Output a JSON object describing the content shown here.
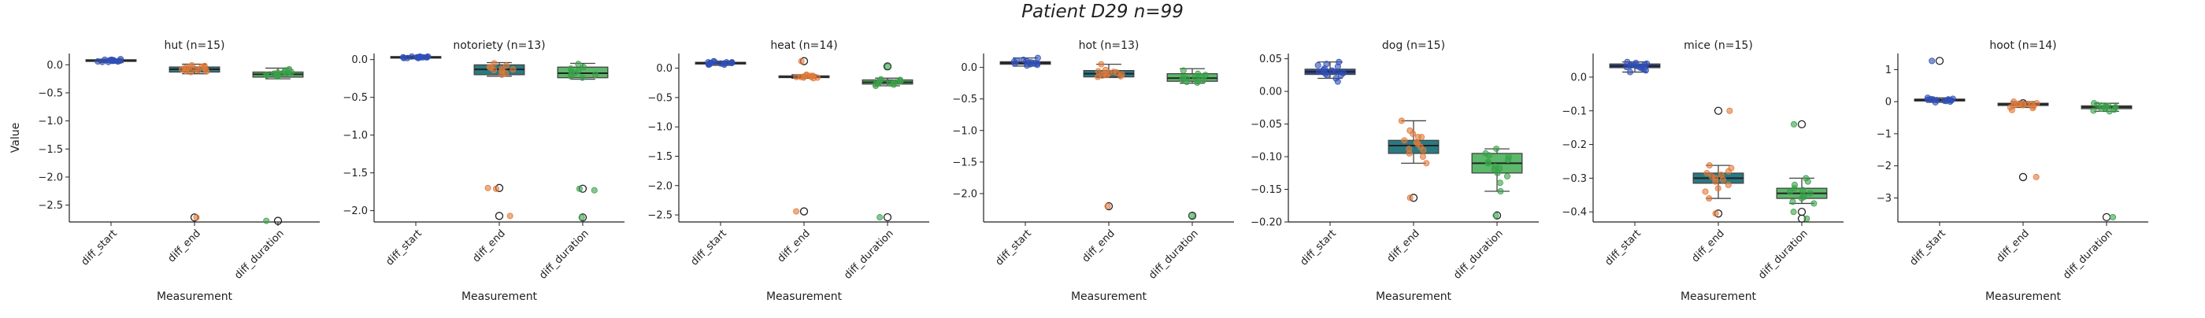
{
  "chart_data": {
    "type": "box",
    "suptitle": "Patient D29 n=99",
    "ylabel": "Value",
    "xlabel": "Measurement",
    "categories": [
      "diff_start",
      "diff_end",
      "diff_duration"
    ],
    "colors": {
      "diff_start": "#2f4a9e",
      "diff_end": "#2a7a82",
      "diff_duration": "#5cb86a"
    },
    "point_colors": {
      "diff_start": "#3050b8",
      "diff_end": "#e07a3a",
      "diff_duration": "#3aa04a"
    },
    "grid": false,
    "legend": "none",
    "panels": [
      {
        "title": "hut (n=15)",
        "ylim": [
          -2.8,
          0.2
        ],
        "yticks": [
          0.0,
          -0.5,
          -1.0,
          -1.5,
          -2.0,
          -2.5
        ],
        "ytick_labels": [
          "0.0",
          "−0.5",
          "−1.0",
          "−1.5",
          "−2.0",
          "−2.5"
        ],
        "boxes": [
          {
            "q1": 0.06,
            "median": 0.07,
            "q3": 0.09,
            "wlo": 0.04,
            "whi": 0.1,
            "outliers": []
          },
          {
            "q1": -0.13,
            "median": -0.08,
            "q3": -0.04,
            "wlo": -0.16,
            "whi": 0.01,
            "outliers": [
              -2.72
            ]
          },
          {
            "q1": -0.22,
            "median": -0.17,
            "q3": -0.13,
            "wlo": -0.25,
            "whi": -0.06,
            "outliers": [
              -2.78
            ]
          }
        ],
        "points": [
          [
            0.05,
            0.06,
            0.07,
            0.08,
            0.09,
            0.07,
            0.06,
            0.08,
            0.07,
            0.09,
            0.06,
            0.08,
            0.07,
            0.05,
            0.1
          ],
          [
            -0.02,
            -0.05,
            -0.08,
            -0.1,
            -0.12,
            -0.07,
            -0.04,
            -0.06,
            -0.09,
            -0.11,
            -0.03,
            -0.08,
            -0.13,
            -0.01,
            -2.72
          ],
          [
            -0.1,
            -0.14,
            -0.16,
            -0.18,
            -0.2,
            -0.15,
            -0.12,
            -0.19,
            -0.17,
            -0.13,
            -0.08,
            -0.21,
            -0.16,
            -0.14,
            -2.78
          ]
        ]
      },
      {
        "title": "notoriety (n=13)",
        "ylim": [
          -2.15,
          0.08
        ],
        "yticks": [
          0.0,
          -0.5,
          -1.0,
          -1.5,
          -2.0
        ],
        "ytick_labels": [
          "0.0",
          "−0.5",
          "−1.0",
          "−1.5",
          "−2.0"
        ],
        "boxes": [
          {
            "q1": 0.02,
            "median": 0.03,
            "q3": 0.04,
            "wlo": 0.01,
            "whi": 0.05,
            "outliers": []
          },
          {
            "q1": -0.2,
            "median": -0.13,
            "q3": -0.07,
            "wlo": -0.22,
            "whi": -0.04,
            "outliers": [
              -1.7,
              -2.07
            ]
          },
          {
            "q1": -0.24,
            "median": -0.18,
            "q3": -0.1,
            "wlo": -0.26,
            "whi": -0.05,
            "outliers": [
              -1.71,
              -2.09
            ]
          }
        ],
        "points": [
          [
            0.02,
            0.03,
            0.04,
            0.03,
            0.02,
            0.03,
            0.04,
            0.03,
            0.02,
            0.03,
            0.04,
            0.03,
            0.03
          ],
          [
            -0.05,
            -0.1,
            -0.13,
            -0.15,
            -0.18,
            -0.12,
            -0.08,
            -0.2,
            -0.14,
            -0.11,
            -1.7,
            -1.71,
            -2.07
          ],
          [
            -0.06,
            -0.12,
            -0.16,
            -0.2,
            -0.22,
            -0.18,
            -0.1,
            -0.24,
            -0.15,
            -0.19,
            -1.71,
            -1.73,
            -2.09
          ]
        ]
      },
      {
        "title": "heat (n=14)",
        "ylim": [
          -2.62,
          0.25
        ],
        "yticks": [
          0.0,
          -0.5,
          -1.0,
          -1.5,
          -2.0,
          -2.5
        ],
        "ytick_labels": [
          "0.0",
          "−0.5",
          "−1.0",
          "−1.5",
          "−2.0",
          "−2.5"
        ],
        "boxes": [
          {
            "q1": 0.07,
            "median": 0.09,
            "q3": 0.1,
            "wlo": 0.05,
            "whi": 0.12,
            "outliers": []
          },
          {
            "q1": -0.16,
            "median": -0.15,
            "q3": -0.13,
            "wlo": -0.17,
            "whi": -0.11,
            "outliers": [
              0.12,
              -2.44
            ]
          },
          {
            "q1": -0.27,
            "median": -0.24,
            "q3": -0.2,
            "wlo": -0.3,
            "whi": -0.17,
            "outliers": [
              0.03,
              -2.54
            ]
          }
        ],
        "points": [
          [
            0.06,
            0.08,
            0.09,
            0.1,
            0.07,
            0.11,
            0.09,
            0.08,
            0.1,
            0.07,
            0.09,
            0.06,
            0.1,
            0.12
          ],
          [
            -0.13,
            -0.15,
            -0.16,
            -0.14,
            -0.17,
            -0.12,
            -0.15,
            -0.14,
            -0.16,
            -0.13,
            -0.15,
            -0.11,
            0.12,
            -2.44
          ],
          [
            -0.2,
            -0.23,
            -0.25,
            -0.27,
            -0.22,
            -0.26,
            -0.24,
            -0.28,
            -0.21,
            -0.25,
            -0.19,
            -0.3,
            0.03,
            -2.54
          ]
        ]
      },
      {
        "title": "hot (n=13)",
        "ylim": [
          -2.45,
          0.22
        ],
        "yticks": [
          0.0,
          -0.5,
          -1.0,
          -1.5,
          -2.0
        ],
        "ytick_labels": [
          "0.0",
          "−0.5",
          "−1.0",
          "−1.5",
          "−2.0"
        ],
        "boxes": [
          {
            "q1": 0.05,
            "median": 0.07,
            "q3": 0.09,
            "wlo": 0.02,
            "whi": 0.15,
            "outliers": []
          },
          {
            "q1": -0.15,
            "median": -0.1,
            "q3": -0.05,
            "wlo": -0.16,
            "whi": 0.05,
            "outliers": [
              -2.2
            ]
          },
          {
            "q1": -0.22,
            "median": -0.17,
            "q3": -0.1,
            "wlo": -0.25,
            "whi": -0.02,
            "outliers": [
              -2.35
            ]
          }
        ],
        "points": [
          [
            0.03,
            0.06,
            0.08,
            0.1,
            0.12,
            0.07,
            0.05,
            0.09,
            0.15,
            0.04,
            0.08,
            0.06,
            0.11
          ],
          [
            -0.06,
            -0.09,
            -0.12,
            -0.15,
            -0.1,
            -0.04,
            0.05,
            -0.14,
            -0.08,
            -0.11,
            -0.13,
            -0.07,
            -2.2
          ],
          [
            -0.1,
            -0.14,
            -0.18,
            -0.2,
            -0.23,
            -0.16,
            -0.12,
            -0.05,
            -0.19,
            -0.22,
            -0.15,
            -0.24,
            -2.35
          ]
        ]
      },
      {
        "title": "dog (n=15)",
        "ylim": [
          -0.2,
          0.058
        ],
        "yticks": [
          0.05,
          0.0,
          -0.05,
          -0.1,
          -0.15,
          -0.2
        ],
        "ytick_labels": [
          "0.05",
          "0.00",
          "−0.05",
          "−0.10",
          "−0.15",
          "−0.20"
        ],
        "boxes": [
          {
            "q1": 0.026,
            "median": 0.03,
            "q3": 0.034,
            "wlo": 0.02,
            "whi": 0.045,
            "outliers": []
          },
          {
            "q1": -0.095,
            "median": -0.083,
            "q3": -0.075,
            "wlo": -0.11,
            "whi": -0.045,
            "outliers": [
              -0.163
            ]
          },
          {
            "q1": -0.125,
            "median": -0.11,
            "q3": -0.095,
            "wlo": -0.153,
            "whi": -0.088,
            "outliers": [
              -0.19
            ]
          }
        ],
        "points": [
          [
            0.02,
            0.025,
            0.03,
            0.035,
            0.04,
            0.045,
            0.028,
            0.032,
            0.027,
            0.038,
            0.042,
            0.015,
            0.03,
            0.025,
            0.033
          ],
          [
            -0.045,
            -0.06,
            -0.07,
            -0.075,
            -0.08,
            -0.085,
            -0.09,
            -0.095,
            -0.1,
            -0.11,
            -0.078,
            -0.088,
            -0.07,
            -0.065,
            -0.163
          ],
          [
            -0.088,
            -0.095,
            -0.1,
            -0.105,
            -0.11,
            -0.115,
            -0.12,
            -0.125,
            -0.13,
            -0.14,
            -0.153,
            -0.098,
            -0.108,
            -0.118,
            -0.19
          ]
        ]
      },
      {
        "title": "mice (n=15)",
        "ylim": [
          -0.43,
          0.07
        ],
        "yticks": [
          0.0,
          -0.1,
          -0.2,
          -0.3,
          -0.4
        ],
        "ytick_labels": [
          "0.0",
          "−0.1",
          "−0.2",
          "−0.3",
          "−0.4"
        ],
        "boxes": [
          {
            "q1": 0.028,
            "median": 0.033,
            "q3": 0.039,
            "wlo": 0.015,
            "whi": 0.045,
            "outliers": []
          },
          {
            "q1": -0.315,
            "median": -0.3,
            "q3": -0.285,
            "wlo": -0.36,
            "whi": -0.262,
            "outliers": [
              -0.1,
              -0.405
            ]
          },
          {
            "q1": -0.36,
            "median": -0.345,
            "q3": -0.33,
            "wlo": -0.375,
            "whi": -0.3,
            "outliers": [
              -0.14,
              -0.4,
              -0.42
            ]
          }
        ],
        "points": [
          [
            0.015,
            0.025,
            0.03,
            0.035,
            0.04,
            0.045,
            0.028,
            0.032,
            0.036,
            0.02,
            0.038,
            0.042,
            0.03,
            0.034,
            0.026
          ],
          [
            -0.262,
            -0.27,
            -0.28,
            -0.29,
            -0.3,
            -0.31,
            -0.32,
            -0.33,
            -0.34,
            -0.36,
            -0.295,
            -0.305,
            -0.285,
            -0.1,
            -0.405
          ],
          [
            -0.3,
            -0.32,
            -0.33,
            -0.34,
            -0.345,
            -0.35,
            -0.36,
            -0.37,
            -0.375,
            -0.335,
            -0.355,
            -0.31,
            -0.14,
            -0.4,
            -0.42
          ]
        ]
      },
      {
        "title": "hoot (n=14)",
        "ylim": [
          -3.75,
          1.5
        ],
        "yticks": [
          1,
          0,
          -1,
          -2,
          -3
        ],
        "ytick_labels": [
          "1",
          "0",
          "−1",
          "−2",
          "−3"
        ],
        "boxes": [
          {
            "q1": 0.02,
            "median": 0.05,
            "q3": 0.08,
            "wlo": -0.02,
            "whi": 0.12,
            "outliers": [
              1.27
            ]
          },
          {
            "q1": -0.12,
            "median": -0.08,
            "q3": -0.05,
            "wlo": -0.18,
            "whi": 0.0,
            "outliers": [
              -0.05,
              -2.35
            ]
          },
          {
            "q1": -0.22,
            "median": -0.17,
            "q3": -0.13,
            "wlo": -0.3,
            "whi": -0.05,
            "outliers": [
              -3.6
            ]
          }
        ],
        "points": [
          [
            0.0,
            0.03,
            0.05,
            0.07,
            0.09,
            0.12,
            0.04,
            0.06,
            0.08,
            0.02,
            -0.02,
            0.05,
            0.07,
            1.27
          ],
          [
            -0.05,
            -0.08,
            -0.1,
            -0.12,
            -0.15,
            -0.18,
            -0.07,
            -0.09,
            -0.11,
            0.0,
            -0.2,
            -0.26,
            -0.06,
            -2.35
          ],
          [
            -0.05,
            -0.1,
            -0.13,
            -0.15,
            -0.17,
            -0.2,
            -0.22,
            -0.25,
            -0.3,
            -0.12,
            -0.18,
            -0.16,
            -0.28,
            -3.6
          ]
        ]
      }
    ]
  }
}
